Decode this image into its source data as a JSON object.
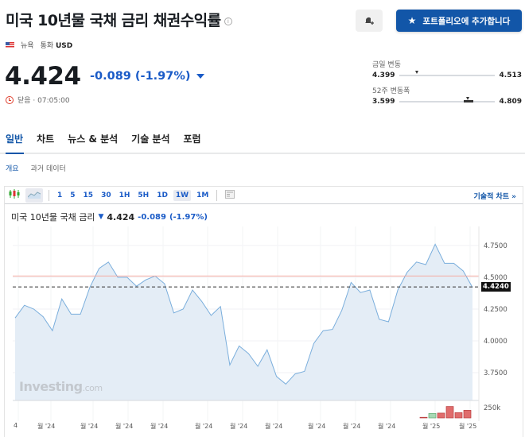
{
  "header": {
    "title": "미국 10년물 국채 금리 채권수익률",
    "info_icon": "i",
    "location": "뉴욕",
    "currency_label": "통화",
    "currency": "USD",
    "price": "4.424",
    "change": "-0.089 (-1.97%)",
    "status": "닫음 · 07:05:00"
  },
  "actions": {
    "alert_icon": "bell-plus-icon",
    "portfolio_button": "포트폴리오에 추가합니다"
  },
  "ranges": {
    "day": {
      "label": "금일 변동",
      "low": "4.399",
      "high": "4.513"
    },
    "week52": {
      "label": "52주 변동폭",
      "low": "3.599",
      "high": "4.809"
    }
  },
  "tabs": [
    {
      "label": "일반",
      "active": true
    },
    {
      "label": "차트"
    },
    {
      "label": "뉴스 & 분석"
    },
    {
      "label": "기술 분석"
    },
    {
      "label": "포럼"
    }
  ],
  "subtabs": [
    {
      "label": "개요",
      "active": true
    },
    {
      "label": "과거 데이터"
    }
  ],
  "toolbar": {
    "intervals": [
      "1",
      "5",
      "15",
      "30",
      "1H",
      "5H",
      "1D",
      "1W",
      "1M"
    ],
    "selected": "1W",
    "tech_chart_link": "기술적 차트 »"
  },
  "chart_header": {
    "name": "미국 10년물 국채 금리",
    "price": "4.424",
    "change": "-0.089",
    "change_pct": "(-1.97%)"
  },
  "chart_data": {
    "type": "area",
    "title": "미국 10년물 국채 금리",
    "y_ticks": [
      "4.7500",
      "4.5000",
      "4.2500",
      "4.0000",
      "3.7500"
    ],
    "ylim": [
      3.6,
      4.82
    ],
    "current_value": "4.4240",
    "reference_line": 4.51,
    "x_ticks": [
      "4",
      "월 '24",
      "월 '24",
      "월 '24",
      "월 '24",
      "월 '24",
      "월 '24",
      "월 '24",
      "월 '24",
      "월 '24",
      "월 '24",
      "월 '25",
      "월 '25"
    ],
    "values": [
      4.18,
      4.28,
      4.25,
      4.19,
      4.08,
      4.33,
      4.21,
      4.21,
      4.42,
      4.57,
      4.62,
      4.5,
      4.5,
      4.43,
      4.48,
      4.51,
      4.45,
      4.22,
      4.25,
      4.4,
      4.31,
      4.2,
      4.27,
      3.81,
      3.96,
      3.9,
      3.8,
      3.93,
      3.72,
      3.66,
      3.74,
      3.76,
      3.98,
      4.08,
      4.09,
      4.24,
      4.46,
      4.38,
      4.4,
      4.17,
      4.15,
      4.4,
      4.54,
      4.62,
      4.6,
      4.76,
      4.61,
      4.61,
      4.55,
      4.42
    ],
    "volume_label": "250k",
    "volume_bars": [
      {
        "value": 0.05,
        "color": "red"
      },
      {
        "value": 0.35,
        "color": "green"
      },
      {
        "value": 0.38,
        "color": "red"
      },
      {
        "value": 0.9,
        "color": "red"
      },
      {
        "value": 0.42,
        "color": "red"
      },
      {
        "value": 0.6,
        "color": "red"
      }
    ]
  },
  "watermark": {
    "brand": "Investing",
    "suffix": ".com"
  },
  "colors": {
    "accent": "#1256a8",
    "negative": "#1a5bc7",
    "line": "#7aaedc",
    "area": "#e4edf6",
    "ref_line": "#f5a9a0"
  }
}
